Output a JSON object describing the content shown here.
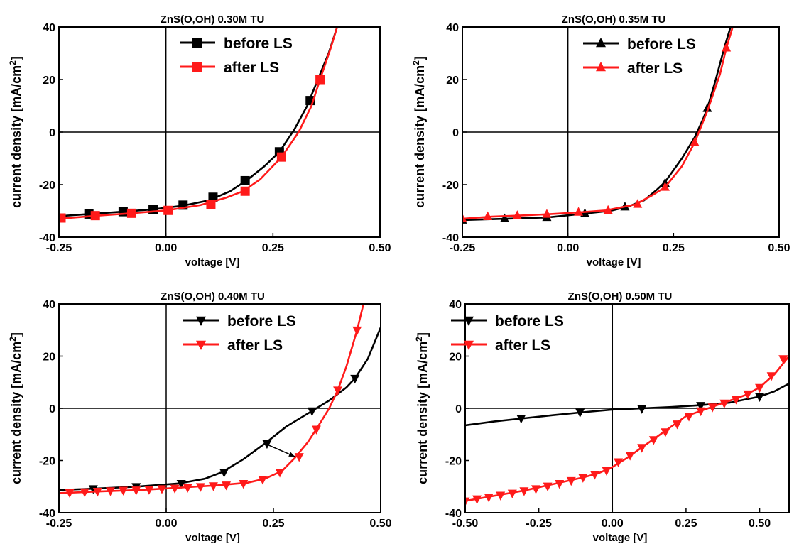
{
  "colors": {
    "before": "#000000",
    "after": "#ff1a1a"
  },
  "chart_data": [
    {
      "type": "line",
      "title": "ZnS(O,OH) 0.30M TU",
      "xlabel": "voltage [V]",
      "ylabel": "current density [mA/cm",
      "ylabel_sup": "2",
      "ylabel_end": "]",
      "xlim": [
        -0.25,
        0.5
      ],
      "ylim": [
        -40,
        40
      ],
      "xticks": [
        -0.25,
        0,
        0.25,
        0.5
      ],
      "xtick_labels": [
        "-0.25",
        "0.00",
        "0.25",
        "0.50"
      ],
      "yticks": [
        -40,
        -20,
        0,
        20,
        40
      ],
      "ytick_labels": [
        "-40",
        "-20",
        "0",
        "20",
        "40"
      ],
      "marker": "square",
      "series": [
        {
          "name": "before LS",
          "color_key": "before",
          "curve": [
            [
              -0.25,
              -32
            ],
            [
              -0.18,
              -31.2
            ],
            [
              -0.1,
              -30.3
            ],
            [
              -0.03,
              -29.4
            ],
            [
              0.04,
              -28
            ],
            [
              0.1,
              -26
            ],
            [
              0.15,
              -22.5
            ],
            [
              0.19,
              -18.2
            ],
            [
              0.23,
              -13
            ],
            [
              0.265,
              -7.5
            ],
            [
              0.3,
              1
            ],
            [
              0.33,
              10
            ],
            [
              0.36,
              22
            ],
            [
              0.38,
              30
            ],
            [
              0.4,
              40
            ]
          ],
          "points": [
            [
              -0.18,
              -31.2
            ],
            [
              -0.1,
              -30.3
            ],
            [
              -0.03,
              -29.4
            ],
            [
              0.04,
              -27.8
            ],
            [
              0.11,
              -24.8
            ],
            [
              0.185,
              -18.5
            ],
            [
              0.265,
              -7.5
            ],
            [
              0.337,
              12
            ]
          ]
        },
        {
          "name": "after LS",
          "color_key": "after",
          "curve": [
            [
              -0.25,
              -33
            ],
            [
              -0.16,
              -31.8
            ],
            [
              -0.08,
              -30.9
            ],
            [
              0.0,
              -29.8
            ],
            [
              0.08,
              -27.8
            ],
            [
              0.14,
              -25
            ],
            [
              0.18,
              -22.5
            ],
            [
              0.22,
              -18
            ],
            [
              0.27,
              -9.5
            ],
            [
              0.31,
              0
            ],
            [
              0.34,
              10
            ],
            [
              0.36,
              20
            ],
            [
              0.385,
              32
            ],
            [
              0.4,
              40
            ]
          ],
          "points": [
            [
              -0.245,
              -32.7
            ],
            [
              -0.165,
              -31.8
            ],
            [
              -0.08,
              -30.9
            ],
            [
              0.005,
              -29.8
            ],
            [
              0.105,
              -27.6
            ],
            [
              0.185,
              -22.5
            ],
            [
              0.27,
              -9.5
            ],
            [
              0.36,
              20
            ]
          ]
        }
      ]
    },
    {
      "type": "line",
      "title": "ZnS(O,OH) 0.35M TU",
      "xlabel": "voltage [V]",
      "ylabel": "current density [mA/cm",
      "ylabel_sup": "2",
      "ylabel_end": "]",
      "xlim": [
        -0.25,
        0.5
      ],
      "ylim": [
        -40,
        40
      ],
      "xticks": [
        -0.25,
        0,
        0.25,
        0.5
      ],
      "xtick_labels": [
        "-0.25",
        "0.00",
        "0.25",
        "0.50"
      ],
      "yticks": [
        -40,
        -20,
        0,
        20,
        40
      ],
      "ytick_labels": [
        "-40",
        "-20",
        "0",
        "20",
        "40"
      ],
      "marker": "triangle-up",
      "series": [
        {
          "name": "before LS",
          "color_key": "before",
          "curve": [
            [
              -0.25,
              -33.5
            ],
            [
              -0.15,
              -33
            ],
            [
              -0.05,
              -32.5
            ],
            [
              0.04,
              -31
            ],
            [
              0.1,
              -30
            ],
            [
              0.14,
              -28.5
            ],
            [
              0.18,
              -26
            ],
            [
              0.21,
              -22
            ],
            [
              0.23,
              -19
            ],
            [
              0.27,
              -10
            ],
            [
              0.3,
              -2
            ],
            [
              0.32,
              5
            ],
            [
              0.33,
              9
            ],
            [
              0.35,
              20
            ],
            [
              0.37,
              32
            ],
            [
              0.385,
              40
            ]
          ],
          "points": [
            [
              -0.25,
              -33.5
            ],
            [
              -0.15,
              -33
            ],
            [
              -0.05,
              -32.5
            ],
            [
              0.04,
              -31
            ],
            [
              0.135,
              -28.5
            ],
            [
              0.23,
              -19.5
            ],
            [
              0.33,
              9
            ]
          ]
        },
        {
          "name": "after LS",
          "color_key": "after",
          "curve": [
            [
              -0.25,
              -33
            ],
            [
              -0.18,
              -32.2
            ],
            [
              -0.12,
              -31.8
            ],
            [
              -0.05,
              -31.3
            ],
            [
              0.03,
              -30.5
            ],
            [
              0.09,
              -29.8
            ],
            [
              0.16,
              -27.5
            ],
            [
              0.2,
              -24
            ],
            [
              0.23,
              -21
            ],
            [
              0.27,
              -13
            ],
            [
              0.3,
              -4
            ],
            [
              0.33,
              8
            ],
            [
              0.36,
              22
            ],
            [
              0.375,
              32
            ],
            [
              0.39,
              40
            ]
          ],
          "points": [
            [
              -0.25,
              -33
            ],
            [
              -0.19,
              -32.2
            ],
            [
              -0.12,
              -31.8
            ],
            [
              -0.05,
              -31.3
            ],
            [
              0.025,
              -30.5
            ],
            [
              0.095,
              -29.8
            ],
            [
              0.165,
              -27.5
            ],
            [
              0.23,
              -21
            ],
            [
              0.3,
              -4
            ],
            [
              0.375,
              32
            ]
          ]
        }
      ]
    },
    {
      "type": "line",
      "title": "ZnS(O,OH) 0.40M TU",
      "xlabel": "voltage [V]",
      "ylabel": "current density [mA/cm",
      "ylabel_sup": "2",
      "ylabel_end": "]",
      "xlim": [
        -0.25,
        0.5
      ],
      "ylim": [
        -40,
        40
      ],
      "xticks": [
        -0.25,
        0,
        0.25,
        0.5
      ],
      "xtick_labels": [
        "-0.25",
        "0.00",
        "0.25",
        "0.50"
      ],
      "yticks": [
        -40,
        -20,
        0,
        20,
        40
      ],
      "ytick_labels": [
        "-40",
        "-20",
        "0",
        "20",
        "40"
      ],
      "marker": "triangle-down",
      "annotation_arrow": {
        "from": [
          0.23,
          -13.5
        ],
        "to": [
          0.3,
          -18.5
        ]
      },
      "series": [
        {
          "name": "before LS",
          "color_key": "before",
          "curve": [
            [
              -0.25,
              -31.3
            ],
            [
              -0.17,
              -30.8
            ],
            [
              -0.07,
              -30
            ],
            [
              0.03,
              -28.8
            ],
            [
              0.09,
              -27
            ],
            [
              0.13,
              -24.5
            ],
            [
              0.18,
              -19.5
            ],
            [
              0.23,
              -13.5
            ],
            [
              0.28,
              -7
            ],
            [
              0.34,
              -1
            ],
            [
              0.38,
              3
            ],
            [
              0.42,
              8
            ],
            [
              0.44,
              11.5
            ],
            [
              0.47,
              19
            ],
            [
              0.5,
              31
            ]
          ],
          "points": [
            [
              -0.17,
              -30.8
            ],
            [
              -0.07,
              -30
            ],
            [
              0.035,
              -28.8
            ],
            [
              0.135,
              -24.5
            ],
            [
              0.235,
              -13.5
            ],
            [
              0.34,
              -1
            ],
            [
              0.44,
              11.5
            ]
          ]
        },
        {
          "name": "after LS",
          "color_key": "after",
          "curve": [
            [
              -0.25,
              -32.5
            ],
            [
              -0.15,
              -31.8
            ],
            [
              -0.05,
              -31.2
            ],
            [
              0.05,
              -30.2
            ],
            [
              0.12,
              -29.5
            ],
            [
              0.19,
              -28.5
            ],
            [
              0.23,
              -27
            ],
            [
              0.27,
              -24
            ],
            [
              0.3,
              -19
            ],
            [
              0.33,
              -13
            ],
            [
              0.35,
              -8
            ],
            [
              0.38,
              0
            ],
            [
              0.4,
              7
            ],
            [
              0.42,
              16
            ],
            [
              0.445,
              30
            ],
            [
              0.46,
              40
            ]
          ],
          "points": [
            [
              -0.225,
              -32.3
            ],
            [
              -0.19,
              -32
            ],
            [
              -0.16,
              -31.8
            ],
            [
              -0.13,
              -31.6
            ],
            [
              -0.1,
              -31.4
            ],
            [
              -0.07,
              -31.3
            ],
            [
              -0.04,
              -31.1
            ],
            [
              -0.01,
              -30.8
            ],
            [
              0.02,
              -30.6
            ],
            [
              0.05,
              -30.3
            ],
            [
              0.08,
              -30
            ],
            [
              0.11,
              -29.7
            ],
            [
              0.14,
              -29.4
            ],
            [
              0.18,
              -28.8
            ],
            [
              0.225,
              -27.2
            ],
            [
              0.265,
              -24.5
            ],
            [
              0.31,
              -18.5
            ],
            [
              0.35,
              -8
            ],
            [
              0.4,
              7
            ],
            [
              0.445,
              30
            ]
          ]
        }
      ]
    },
    {
      "type": "line",
      "title": "ZnS(O,OH) 0.50M TU",
      "xlabel": "voltage [V]",
      "ylabel": "current density [mA/cm",
      "ylabel_sup": "2",
      "ylabel_end": "]",
      "xlim": [
        -0.5,
        0.6
      ],
      "ylim": [
        -40,
        40
      ],
      "xticks": [
        -0.5,
        -0.25,
        0,
        0.25,
        0.5
      ],
      "xtick_labels": [
        "-0.50",
        "-0.25",
        "0.00",
        "0.25",
        "0.50"
      ],
      "yticks": [
        -40,
        -20,
        0,
        20,
        40
      ],
      "ytick_labels": [
        "-40",
        "-20",
        "0",
        "20",
        "40"
      ],
      "marker": "triangle-down",
      "series": [
        {
          "name": "before LS",
          "color_key": "before",
          "curve": [
            [
              -0.5,
              -6.5
            ],
            [
              -0.4,
              -5
            ],
            [
              -0.3,
              -3.8
            ],
            [
              -0.2,
              -2.6
            ],
            [
              -0.1,
              -1.5
            ],
            [
              0,
              -0.5
            ],
            [
              0.1,
              0
            ],
            [
              0.2,
              0.5
            ],
            [
              0.3,
              1.2
            ],
            [
              0.4,
              2.2
            ],
            [
              0.5,
              4.5
            ],
            [
              0.55,
              6.5
            ],
            [
              0.6,
              9.5
            ]
          ],
          "points": [
            [
              -0.31,
              -3.8
            ],
            [
              -0.11,
              -1.5
            ],
            [
              0.1,
              -0.1
            ],
            [
              0.3,
              1.1
            ],
            [
              0.5,
              4.5
            ]
          ]
        },
        {
          "name": "after LS",
          "color_key": "after",
          "curve": [
            [
              -0.5,
              -35.5
            ],
            [
              -0.4,
              -33.5
            ],
            [
              -0.3,
              -31.5
            ],
            [
              -0.2,
              -29
            ],
            [
              -0.1,
              -26.5
            ],
            [
              -0.05,
              -25
            ],
            [
              0,
              -22.5
            ],
            [
              0.05,
              -19
            ],
            [
              0.1,
              -15
            ],
            [
              0.15,
              -11
            ],
            [
              0.2,
              -7
            ],
            [
              0.25,
              -3
            ],
            [
              0.3,
              -1
            ],
            [
              0.35,
              1
            ],
            [
              0.4,
              3
            ],
            [
              0.45,
              5
            ],
            [
              0.5,
              8
            ],
            [
              0.55,
              13
            ],
            [
              0.6,
              20
            ]
          ],
          "points": [
            [
              -0.5,
              -35.5
            ],
            [
              -0.46,
              -34.7
            ],
            [
              -0.42,
              -34
            ],
            [
              -0.38,
              -33.3
            ],
            [
              -0.34,
              -32.5
            ],
            [
              -0.3,
              -31.6
            ],
            [
              -0.26,
              -30.8
            ],
            [
              -0.22,
              -29.8
            ],
            [
              -0.18,
              -28.8
            ],
            [
              -0.14,
              -27.7
            ],
            [
              -0.1,
              -26.5
            ],
            [
              -0.06,
              -25.3
            ],
            [
              -0.02,
              -23.8
            ],
            [
              0.02,
              -20.5
            ],
            [
              0.06,
              -18
            ],
            [
              0.1,
              -15
            ],
            [
              0.14,
              -12
            ],
            [
              0.18,
              -9
            ],
            [
              0.22,
              -6
            ],
            [
              0.26,
              -3
            ],
            [
              0.3,
              -1
            ],
            [
              0.34,
              0.5
            ],
            [
              0.38,
              2
            ],
            [
              0.42,
              3.5
            ],
            [
              0.46,
              5.5
            ],
            [
              0.5,
              8
            ],
            [
              0.54,
              12.5
            ],
            [
              0.58,
              19
            ]
          ]
        }
      ]
    }
  ]
}
